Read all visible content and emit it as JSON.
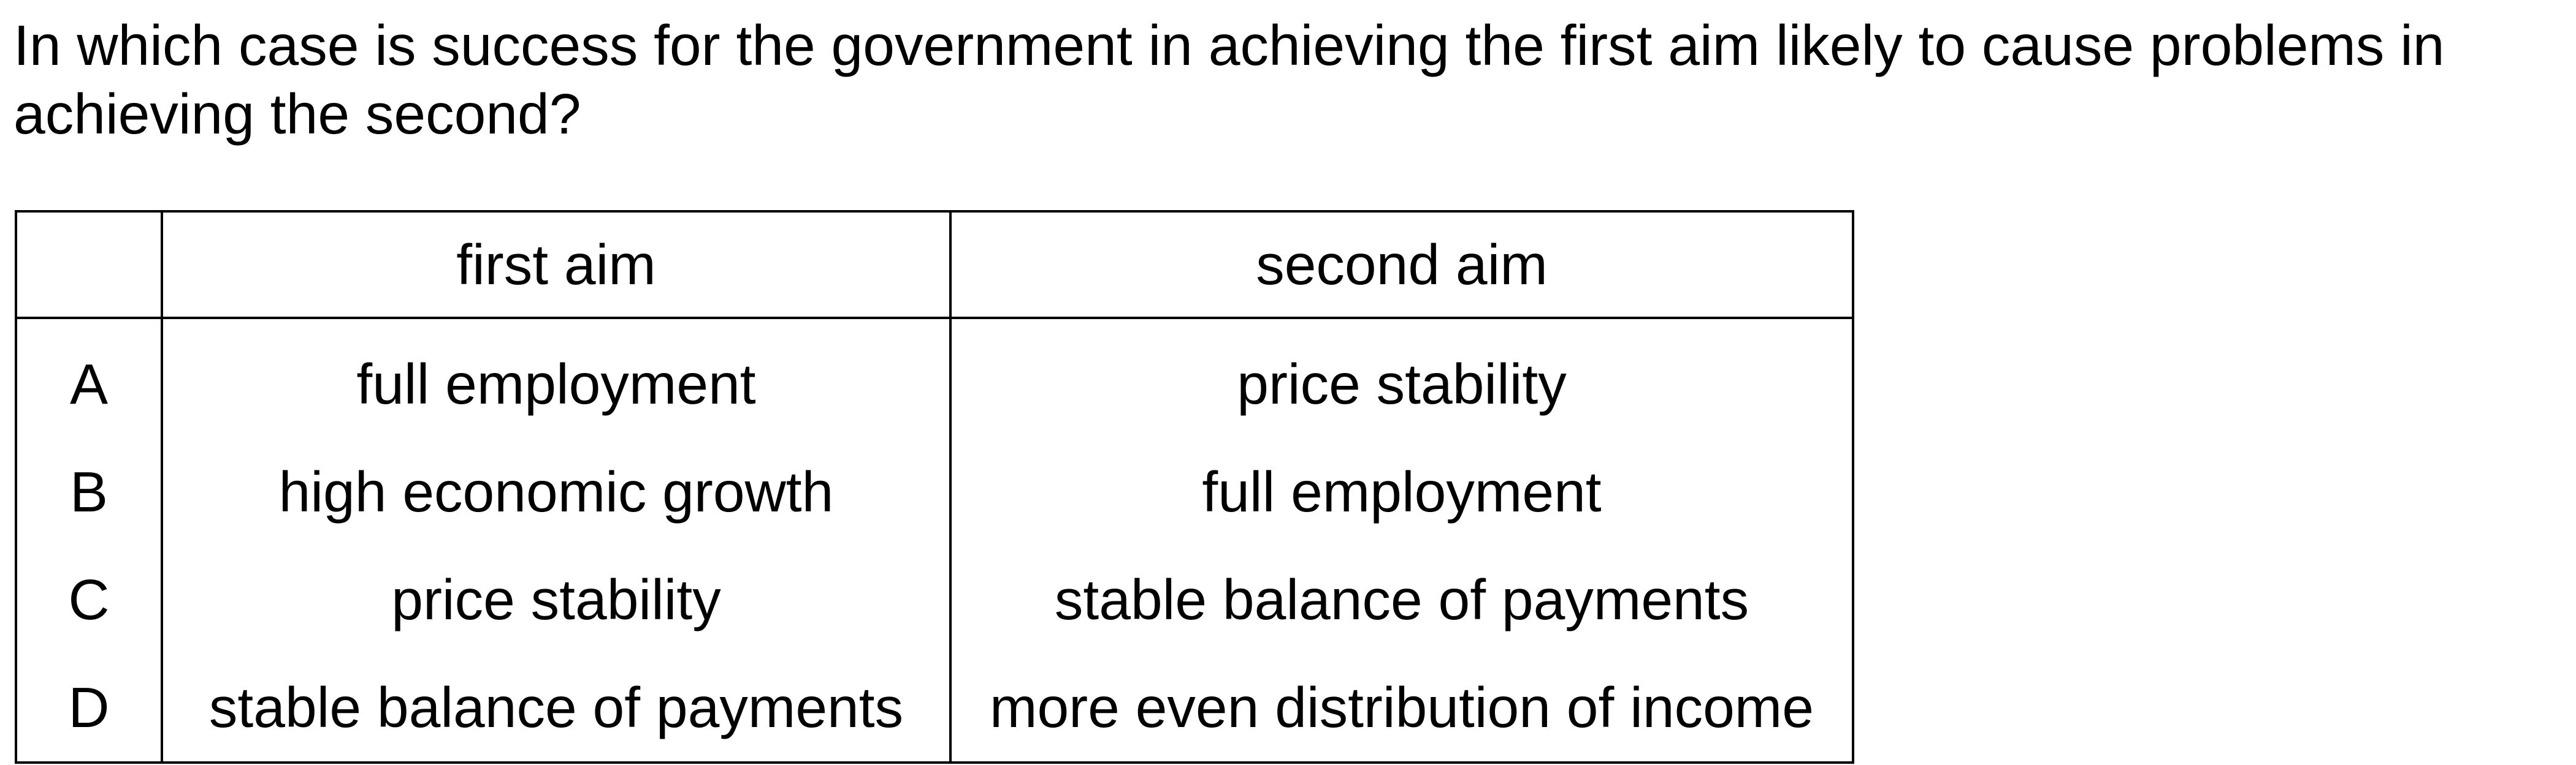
{
  "question": {
    "text": "In which case is success for the government in achieving the first aim likely to cause problems in achieving the second?"
  },
  "table": {
    "headers": {
      "letter": "",
      "first_aim": "first aim",
      "second_aim": "second aim"
    },
    "rows": [
      {
        "letter": "A",
        "first_aim": "full employment",
        "second_aim": "price stability"
      },
      {
        "letter": "B",
        "first_aim": "high economic growth",
        "second_aim": "full employment"
      },
      {
        "letter": "C",
        "first_aim": "price stability",
        "second_aim": "stable balance of payments"
      },
      {
        "letter": "D",
        "first_aim": "stable balance of payments",
        "second_aim": "more even distribution of income"
      }
    ]
  }
}
